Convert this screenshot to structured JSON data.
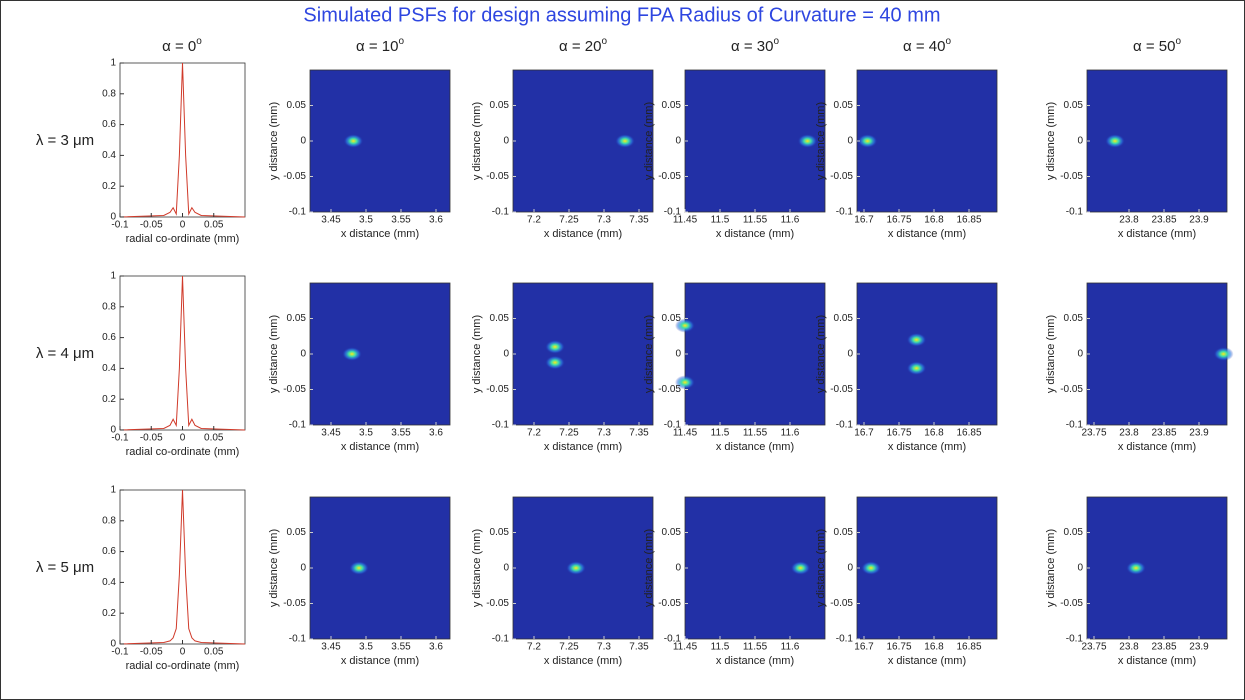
{
  "title": "Simulated PSFs for design assuming FPA Radius of Curvature = 40 mm",
  "column_headers": [
    {
      "label": "α = 0",
      "superscript": "o"
    },
    {
      "label": "α = 10",
      "superscript": "o"
    },
    {
      "label": "α = 20",
      "superscript": "o"
    },
    {
      "label": "α = 30",
      "superscript": "o"
    },
    {
      "label": "α = 40",
      "superscript": "o"
    },
    {
      "label": "α = 50",
      "superscript": "o"
    }
  ],
  "row_labels": [
    "λ = 3 μm",
    "λ = 4 μm",
    "λ = 5 μm"
  ],
  "chart_data": [
    {
      "type": "line",
      "xlabel": "radial co-ordinate (mm)",
      "color": "#d03a2a",
      "x": [
        -0.1,
        -0.03,
        -0.02,
        -0.015,
        -0.01,
        -0.005,
        0,
        0.005,
        0.01,
        0.015,
        0.02,
        0.03,
        0.1
      ],
      "values": [
        0,
        0.01,
        0.03,
        0.06,
        0.02,
        0.4,
        1,
        0.4,
        0.02,
        0.06,
        0.03,
        0.01,
        0
      ],
      "xlim": [
        -0.1,
        0.1
      ],
      "ylim": [
        0,
        1
      ],
      "xticks": [
        -0.1,
        -0.05,
        0,
        0.05
      ],
      "yticks": [
        0,
        0.2,
        0.4,
        0.6,
        0.8,
        1
      ]
    },
    {
      "type": "heatmap",
      "xlabel": "x distance (mm)",
      "ylabel": "y distance (mm)",
      "x": [
        3.482
      ],
      "y": [
        0
      ],
      "xlim": [
        3.42,
        3.62
      ],
      "ylim": [
        -0.1,
        0.1
      ],
      "xticks": [
        3.45,
        3.5,
        3.55,
        3.6
      ],
      "yticks": [
        -0.1,
        -0.05,
        0,
        0.05
      ]
    },
    {
      "type": "heatmap",
      "xlabel": "x distance (mm)",
      "ylabel": "y distance (mm)",
      "x": [
        7.33
      ],
      "y": [
        0
      ],
      "xlim": [
        7.17,
        7.37
      ],
      "ylim": [
        -0.1,
        0.1
      ],
      "xticks": [
        7.2,
        7.25,
        7.3,
        7.35
      ],
      "yticks": [
        -0.1,
        -0.05,
        0,
        0.05
      ]
    },
    {
      "type": "heatmap",
      "xlabel": "x distance (mm)",
      "ylabel": "y distance (mm)",
      "x": [
        11.625
      ],
      "y": [
        0
      ],
      "xlim": [
        11.45,
        11.65
      ],
      "ylim": [
        -0.1,
        0.1
      ],
      "xticks": [
        11.45,
        11.5,
        11.55,
        11.6
      ],
      "yticks": [
        -0.1,
        -0.05,
        0,
        0.05
      ]
    },
    {
      "type": "heatmap",
      "xlabel": "x distance (mm)",
      "ylabel": "y distance (mm)",
      "x": [
        16.705
      ],
      "y": [
        0
      ],
      "xlim": [
        16.69,
        16.89
      ],
      "ylim": [
        -0.1,
        0.1
      ],
      "xticks": [
        16.7,
        16.75,
        16.8,
        16.85
      ],
      "yticks": [
        -0.1,
        -0.05,
        0,
        0.05
      ]
    },
    {
      "type": "heatmap",
      "xlabel": "x distance (mm)",
      "ylabel": "y distance (mm)",
      "x": [
        23.78
      ],
      "y": [
        0
      ],
      "xlim": [
        23.74,
        23.94
      ],
      "ylim": [
        -0.1,
        0.1
      ],
      "xticks": [
        23.8,
        23.85,
        23.9
      ],
      "yticks": [
        -0.1,
        -0.05,
        0,
        0.05
      ]
    },
    {
      "type": "line",
      "xlabel": "radial co-ordinate (mm)",
      "color": "#d03a2a",
      "x": [
        -0.1,
        -0.03,
        -0.02,
        -0.015,
        -0.01,
        -0.005,
        0,
        0.005,
        0.01,
        0.015,
        0.02,
        0.03,
        0.1
      ],
      "values": [
        0,
        0.01,
        0.03,
        0.07,
        0.03,
        0.4,
        1,
        0.4,
        0.03,
        0.07,
        0.03,
        0.01,
        0
      ],
      "xlim": [
        -0.1,
        0.1
      ],
      "ylim": [
        0,
        1
      ],
      "xticks": [
        -0.1,
        -0.05,
        0,
        0.05
      ],
      "yticks": [
        0,
        0.2,
        0.4,
        0.6,
        0.8,
        1
      ]
    },
    {
      "type": "heatmap",
      "xlabel": "x distance (mm)",
      "ylabel": "y distance (mm)",
      "x": [
        3.48
      ],
      "y": [
        0
      ],
      "xlim": [
        3.42,
        3.62
      ],
      "ylim": [
        -0.1,
        0.1
      ],
      "xticks": [
        3.45,
        3.5,
        3.55,
        3.6
      ],
      "yticks": [
        -0.1,
        -0.05,
        0,
        0.05
      ]
    },
    {
      "type": "heatmap",
      "xlabel": "x distance (mm)",
      "ylabel": "y distance (mm)",
      "x": [
        7.23,
        7.23
      ],
      "y": [
        0.01,
        -0.012
      ],
      "xlim": [
        7.17,
        7.37
      ],
      "ylim": [
        -0.1,
        0.1
      ],
      "xticks": [
        7.2,
        7.25,
        7.3,
        7.35
      ],
      "yticks": [
        -0.1,
        -0.05,
        0,
        0.05
      ]
    },
    {
      "type": "heatmap",
      "xlabel": "x distance (mm)",
      "ylabel": "y distance (mm)",
      "x": [
        11.45,
        11.45
      ],
      "y": [
        0.04,
        -0.04
      ],
      "xlim": [
        11.45,
        11.65
      ],
      "ylim": [
        -0.1,
        0.1
      ],
      "xticks": [
        11.45,
        11.5,
        11.55,
        11.6
      ],
      "yticks": [
        -0.1,
        -0.05,
        0,
        0.05
      ]
    },
    {
      "type": "heatmap",
      "xlabel": "x distance (mm)",
      "ylabel": "y distance (mm)",
      "x": [
        16.775,
        16.775
      ],
      "y": [
        0.02,
        -0.02
      ],
      "xlim": [
        16.69,
        16.89
      ],
      "ylim": [
        -0.1,
        0.1
      ],
      "xticks": [
        16.7,
        16.75,
        16.8,
        16.85
      ],
      "yticks": [
        -0.1,
        -0.05,
        0,
        0.05
      ]
    },
    {
      "type": "heatmap",
      "xlabel": "x distance (mm)",
      "ylabel": "y distance (mm)",
      "x": [
        23.935
      ],
      "y": [
        0
      ],
      "xlim": [
        23.74,
        23.94
      ],
      "ylim": [
        -0.1,
        0.1
      ],
      "xticks": [
        23.75,
        23.8,
        23.85,
        23.9
      ],
      "yticks": [
        -0.1,
        -0.05,
        0,
        0.05
      ]
    },
    {
      "type": "line",
      "xlabel": "radial co-ordinate (mm)",
      "color": "#d03a2a",
      "x": [
        -0.1,
        -0.03,
        -0.02,
        -0.015,
        -0.01,
        -0.005,
        0,
        0.005,
        0.01,
        0.015,
        0.02,
        0.03,
        0.1
      ],
      "values": [
        0,
        0.01,
        0.02,
        0.04,
        0.1,
        0.45,
        1,
        0.45,
        0.1,
        0.04,
        0.02,
        0.01,
        0
      ],
      "xlim": [
        -0.1,
        0.1
      ],
      "ylim": [
        0,
        1
      ],
      "xticks": [
        -0.1,
        -0.05,
        0,
        0.05
      ],
      "yticks": [
        0,
        0.2,
        0.4,
        0.6,
        0.8,
        1
      ]
    },
    {
      "type": "heatmap",
      "xlabel": "x distance (mm)",
      "ylabel": "y distance (mm)",
      "x": [
        3.49
      ],
      "y": [
        0
      ],
      "xlim": [
        3.42,
        3.62
      ],
      "ylim": [
        -0.1,
        0.1
      ],
      "xticks": [
        3.45,
        3.5,
        3.55,
        3.6
      ],
      "yticks": [
        -0.1,
        -0.05,
        0,
        0.05
      ]
    },
    {
      "type": "heatmap",
      "xlabel": "x distance (mm)",
      "ylabel": "y distance (mm)",
      "x": [
        7.26
      ],
      "y": [
        0
      ],
      "xlim": [
        7.17,
        7.37
      ],
      "ylim": [
        -0.1,
        0.1
      ],
      "xticks": [
        7.2,
        7.25,
        7.3,
        7.35
      ],
      "yticks": [
        -0.1,
        -0.05,
        0,
        0.05
      ]
    },
    {
      "type": "heatmap",
      "xlabel": "x distance (mm)",
      "ylabel": "y distance (mm)",
      "x": [
        11.615
      ],
      "y": [
        0
      ],
      "xlim": [
        11.45,
        11.65
      ],
      "ylim": [
        -0.1,
        0.1
      ],
      "xticks": [
        11.45,
        11.5,
        11.55,
        11.6
      ],
      "yticks": [
        -0.1,
        -0.05,
        0,
        0.05
      ]
    },
    {
      "type": "heatmap",
      "xlabel": "x distance (mm)",
      "ylabel": "y distance (mm)",
      "x": [
        16.71
      ],
      "y": [
        0
      ],
      "xlim": [
        16.69,
        16.89
      ],
      "ylim": [
        -0.1,
        0.1
      ],
      "xticks": [
        16.7,
        16.75,
        16.8,
        16.85
      ],
      "yticks": [
        -0.1,
        -0.05,
        0,
        0.05
      ]
    },
    {
      "type": "heatmap",
      "xlabel": "x distance (mm)",
      "ylabel": "y distance (mm)",
      "x": [
        23.81
      ],
      "y": [
        0
      ],
      "xlim": [
        23.74,
        23.94
      ],
      "ylim": [
        -0.1,
        0.1
      ],
      "xticks": [
        23.75,
        23.8,
        23.85,
        23.9
      ],
      "yticks": [
        -0.1,
        -0.05,
        0,
        0.05
      ]
    }
  ]
}
